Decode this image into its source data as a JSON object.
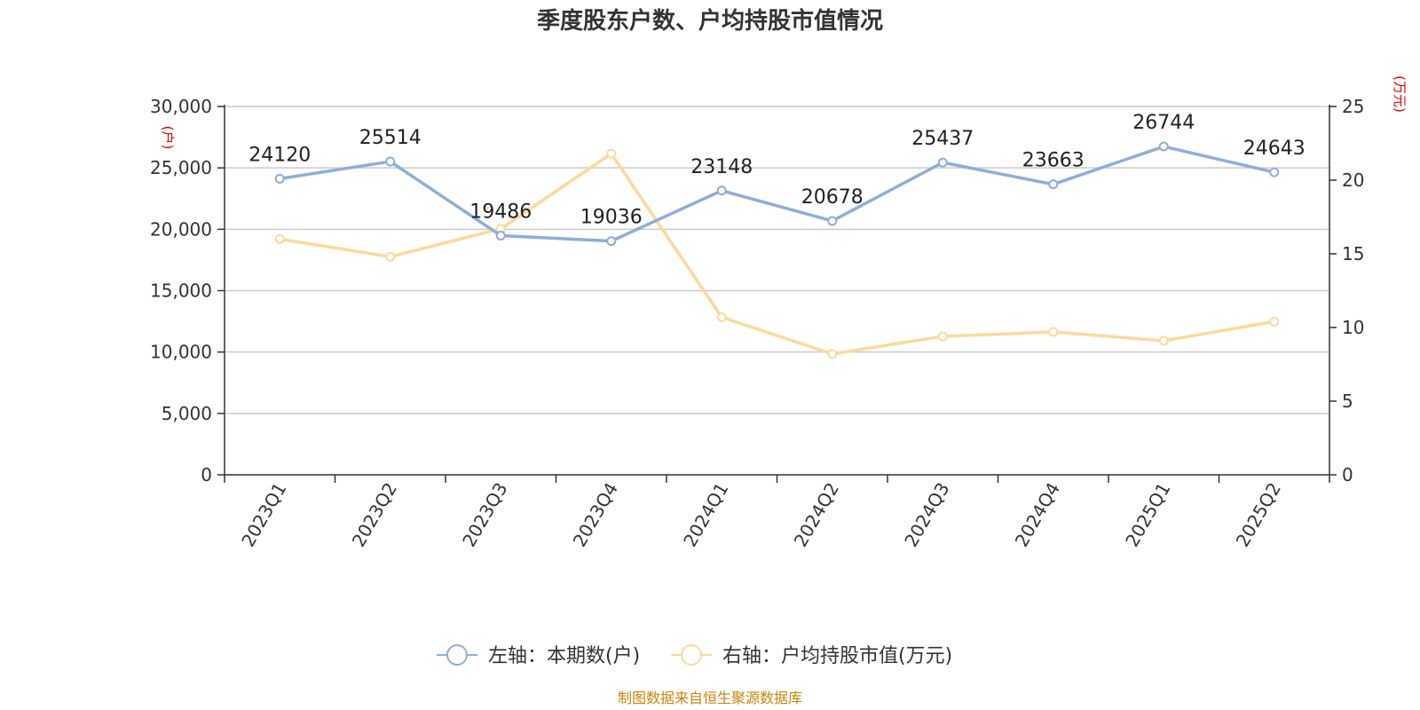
{
  "title": "季度股东户数、户均持股市值情况",
  "source": "制图数据来自恒生聚源数据库",
  "colors": {
    "series_left": "#8eaedb",
    "series_right": "#fdd99a",
    "unit": "#e60000",
    "source": "#c8860a"
  },
  "chart_data": {
    "type": "line",
    "title": "季度股东户数、户均持股市值情况",
    "categories": [
      "2023Q1",
      "2023Q2",
      "2023Q3",
      "2023Q4",
      "2024Q1",
      "2024Q2",
      "2024Q3",
      "2024Q4",
      "2025Q1",
      "2025Q2"
    ],
    "y_left": {
      "unit": "(户)",
      "min": 0,
      "max": 30000,
      "ticks": [
        "0",
        "5,000",
        "10,000",
        "15,000",
        "20,000",
        "25,000",
        "30,000"
      ]
    },
    "y_right": {
      "unit": "(万元)",
      "min": 0,
      "max": 25,
      "ticks": [
        "0",
        "5",
        "10",
        "15",
        "20",
        "25"
      ]
    },
    "grid": true,
    "legend_position": "bottom",
    "series": [
      {
        "name": "左轴：本期数(户)",
        "axis": "left",
        "values": [
          24120,
          25514,
          19486,
          19036,
          23148,
          20678,
          25437,
          23663,
          26744,
          24643
        ],
        "labels": [
          "24120",
          "25514",
          "19486",
          "19036",
          "23148",
          "20678",
          "25437",
          "23663",
          "26744",
          "24643"
        ]
      },
      {
        "name": "右轴：户均持股市值(万元)",
        "axis": "right",
        "values": [
          16.0,
          14.8,
          16.7,
          21.8,
          10.7,
          8.2,
          9.4,
          9.7,
          9.1,
          10.4
        ]
      }
    ]
  }
}
